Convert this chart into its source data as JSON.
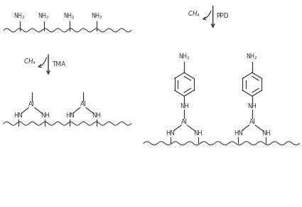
{
  "bg_color": "#ffffff",
  "line_color": "#333333",
  "text_color": "#333333",
  "fig_width": 4.25,
  "fig_height": 2.91,
  "dpi": 100,
  "xlim": [
    0,
    10
  ],
  "ylim": [
    0,
    6.5
  ]
}
